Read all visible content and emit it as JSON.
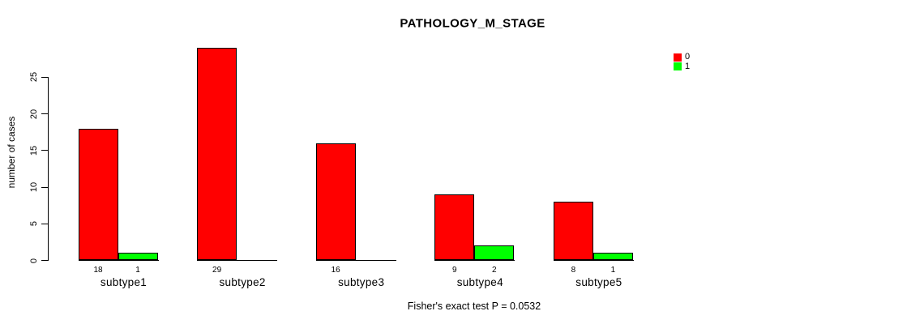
{
  "chart_data": {
    "type": "bar",
    "title": "PATHOLOGY_M_STAGE",
    "ylabel": "number of cases",
    "xlabel": "",
    "categories": [
      "subtype1",
      "subtype2",
      "subtype3",
      "subtype4",
      "subtype5"
    ],
    "series": [
      {
        "name": "0",
        "color": "#FF0000",
        "values": [
          18,
          29,
          16,
          9,
          8
        ]
      },
      {
        "name": "1",
        "color": "#00FF00",
        "values": [
          1,
          0,
          0,
          2,
          1
        ]
      }
    ],
    "bar_value_labels": {
      "shown": true,
      "zeros_hidden": true
    },
    "ylim": [
      0,
      25
    ],
    "yticks": [
      0,
      5,
      10,
      15,
      20,
      25
    ],
    "grid": false,
    "legend_position": "top-right",
    "annotation": "Fisher's exact test P = 0.0532"
  }
}
